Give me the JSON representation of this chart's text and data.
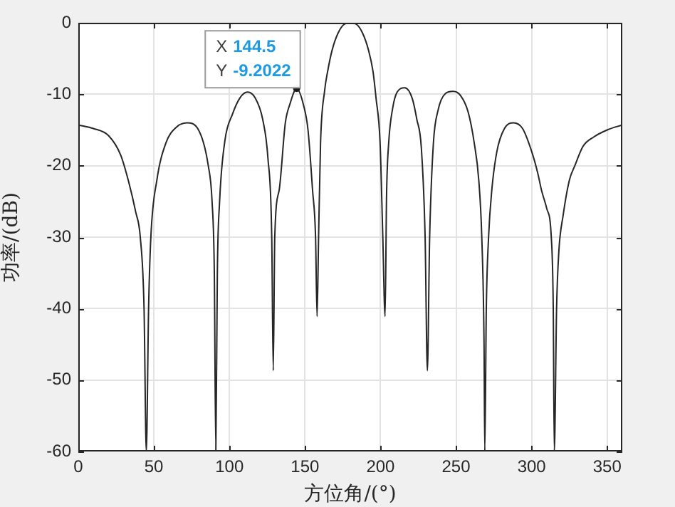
{
  "chart_data": {
    "type": "line",
    "xlabel": "方位角/(°)",
    "ylabel": "功率/(dB)",
    "xlim": [
      0,
      360
    ],
    "ylim": [
      -60,
      0
    ],
    "xticks": [
      0,
      50,
      100,
      150,
      200,
      250,
      300,
      350
    ],
    "yticks": [
      -60,
      -50,
      -40,
      -30,
      -20,
      -10,
      0
    ],
    "grid": true,
    "legend": false,
    "marker": "none",
    "line_style": "solid",
    "series": [
      {
        "color": "#262626",
        "x": [
          0,
          10,
          20,
          28,
          33,
          38,
          41,
          43.5,
          45,
          46.5,
          48,
          52,
          58,
          65,
          72,
          79,
          86,
          88.5,
          90,
          91,
          92,
          93.5,
          97,
          102,
          107,
          112,
          117,
          122,
          125.5,
          128,
          129,
          130,
          133,
          137,
          140,
          144.5,
          149,
          152,
          155,
          157,
          158,
          159,
          160.3,
          163,
          165,
          168,
          172,
          176,
          180,
          184,
          188,
          192,
          195,
          197,
          199.7,
          201.5,
          203,
          204,
          205.4,
          208,
          211,
          216,
          221,
          224,
          227,
          229.5,
          231,
          232.5,
          235,
          238,
          243,
          248,
          253,
          258,
          262,
          265,
          267,
          268.5,
          269,
          270,
          271.5,
          273.6,
          277,
          282,
          288,
          294,
          300,
          304,
          306.6,
          310,
          313,
          314.3,
          315,
          316.5,
          318,
          320.8,
          325,
          328.6,
          334,
          341,
          350,
          360
        ],
        "values": [
          -14.3,
          -14.8,
          -15.8,
          -18.5,
          -22,
          -26.5,
          -30,
          -40,
          -60,
          -40,
          -30,
          -22,
          -16.8,
          -14.6,
          -14,
          -14.8,
          -20,
          -25,
          -35,
          -60,
          -35,
          -25,
          -16.5,
          -12.8,
          -10.5,
          -9.7,
          -10.5,
          -13.5,
          -19,
          -30,
          -48.7,
          -30,
          -23.3,
          -14,
          -11.4,
          -9.2022,
          -11.5,
          -15,
          -23.4,
          -30,
          -41.1,
          -30,
          -16.8,
          -9.5,
          -6.8,
          -3.8,
          -1.4,
          -0.2,
          0,
          -0.2,
          -1.4,
          -3.8,
          -6.8,
          -10.5,
          -16.8,
          -30,
          -41.1,
          -24,
          -16.8,
          -12,
          -9.7,
          -9.1,
          -10.6,
          -13.5,
          -17.5,
          -30,
          -48.7,
          -30,
          -16.8,
          -12.3,
          -9.9,
          -9.6,
          -10.2,
          -12.5,
          -16.8,
          -22,
          -30,
          -45,
          -60,
          -40,
          -30,
          -23.5,
          -18,
          -14.8,
          -14,
          -14.8,
          -18,
          -21,
          -23.5,
          -26,
          -30,
          -40,
          -60,
          -40,
          -32,
          -27,
          -22,
          -20,
          -17.3,
          -16,
          -15,
          -14.3
        ]
      }
    ],
    "annotations": [
      {
        "text": "X 144.5\nY -9.2022",
        "x": 144.5,
        "y": -9.2022
      }
    ]
  }
}
